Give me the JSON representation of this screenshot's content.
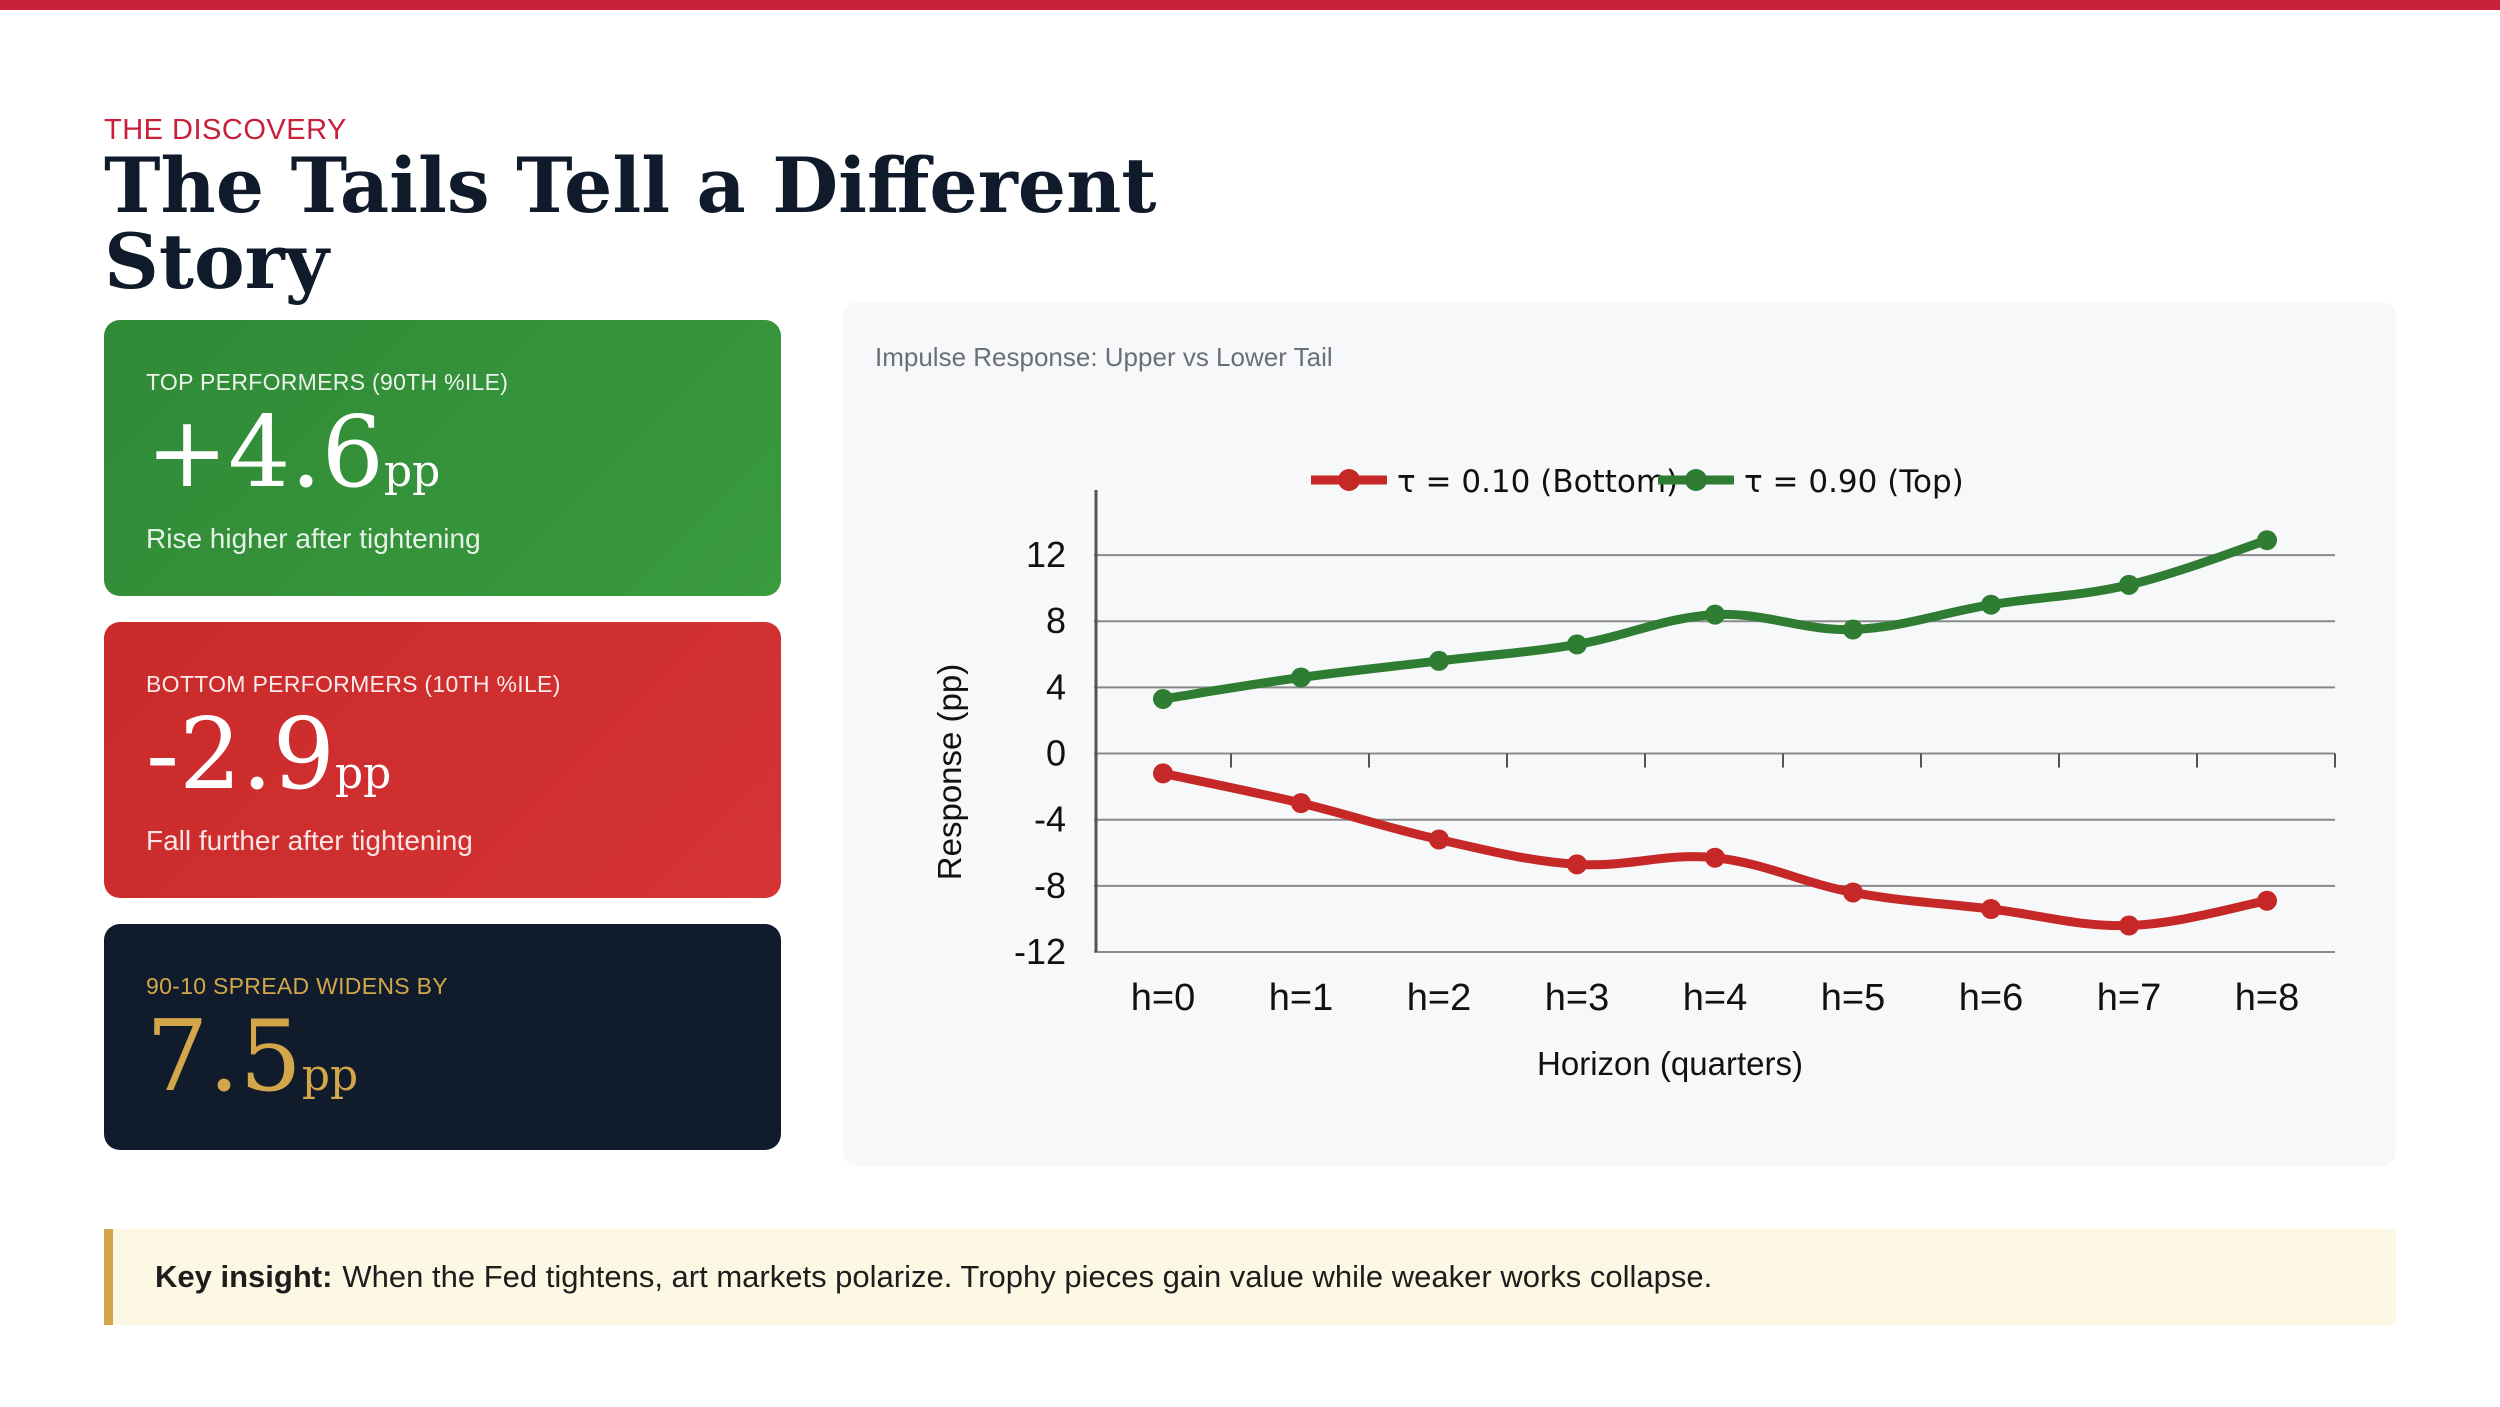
{
  "header": {
    "eyebrow": "THE DISCOVERY",
    "title": "The Tails Tell a Different Story"
  },
  "cards": [
    {
      "label": "TOP PERFORMERS (90TH %ILE)",
      "value": "+4.6",
      "unit": "pp",
      "desc": "Rise higher after tightening",
      "color": "#2f8a36"
    },
    {
      "label": "BOTTOM PERFORMERS (10TH %ILE)",
      "value": "-2.9",
      "unit": "pp",
      "desc": "Fall further after tightening",
      "color": "#c92a2a"
    },
    {
      "label": "90-10 SPREAD WIDENS BY",
      "value": "7.5",
      "unit": "pp",
      "color": "#101c2b"
    }
  ],
  "insight": {
    "lead": "Key insight:",
    "text": "When the Fed tightens, art markets polarize. Trophy pieces gain value while weaker works collapse."
  },
  "chart_data": {
    "type": "line",
    "title": "Impulse Response: Upper vs Lower Tail",
    "xlabel": "Horizon (quarters)",
    "ylabel": "Response (pp)",
    "categories": [
      "h=0",
      "h=1",
      "h=2",
      "h=3",
      "h=4",
      "h=5",
      "h=6",
      "h=7",
      "h=8"
    ],
    "ylim": [
      -12,
      14
    ],
    "yticks": [
      12,
      8,
      4,
      0,
      -4,
      -8,
      -12
    ],
    "grid": true,
    "legend_position": "top-center",
    "series": [
      {
        "name": "τ = 0.10 (Bottom)",
        "color": "#c62828",
        "values": [
          -1.2,
          -3.0,
          -5.2,
          -6.7,
          -6.3,
          -8.4,
          -9.4,
          -10.4,
          -8.9
        ]
      },
      {
        "name": "τ = 0.90 (Top)",
        "color": "#2e7d32",
        "values": [
          3.3,
          4.6,
          5.6,
          6.6,
          8.4,
          7.5,
          9.0,
          10.2,
          12.9
        ]
      }
    ]
  }
}
